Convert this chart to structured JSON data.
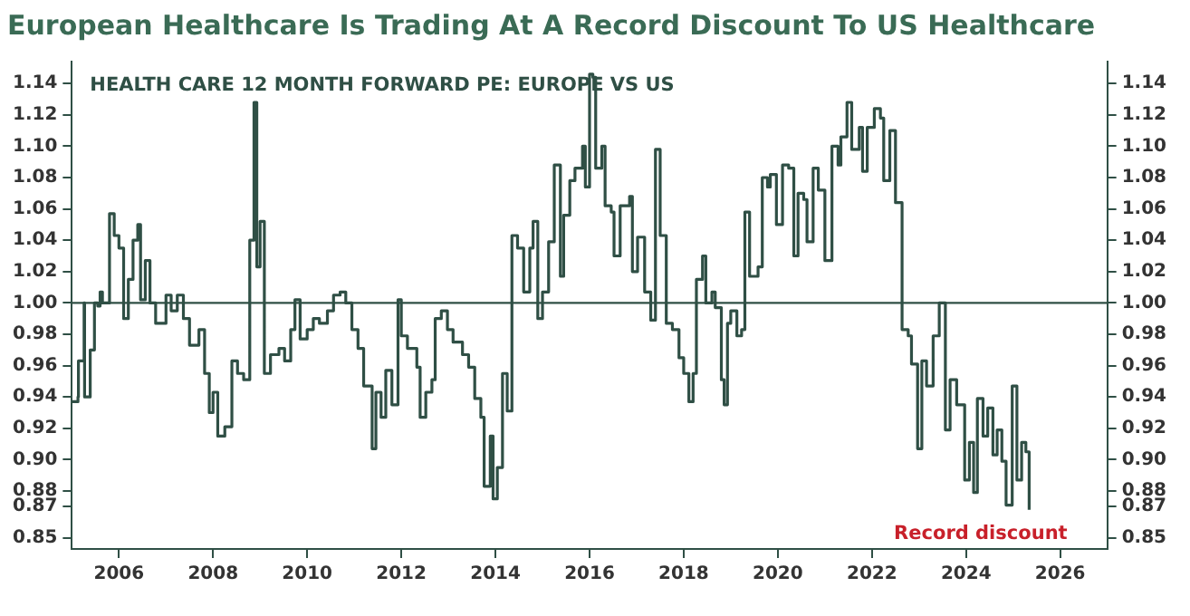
{
  "chart_data": {
    "type": "step",
    "title": "European Healthcare Is Trading At A Record Discount To US Healthcare",
    "subtitle": "HEALTH CARE 12 MONTH FORWARD PE: EUROPE VS US",
    "x": [
      2005.0,
      2005.13,
      2005.14,
      2005.26,
      2005.27,
      2005.39,
      2005.48,
      2005.55,
      2005.6,
      2005.65,
      2005.8,
      2005.9,
      2006.0,
      2006.1,
      2006.2,
      2006.3,
      2006.4,
      2006.46,
      2006.56,
      2006.66,
      2006.78,
      2007.0,
      2007.11,
      2007.24,
      2007.37,
      2007.5,
      2007.7,
      2007.82,
      2007.92,
      2008.0,
      2008.1,
      2008.25,
      2008.4,
      2008.52,
      2008.65,
      2008.78,
      2008.87,
      2008.93,
      2009.0,
      2009.09,
      2009.22,
      2009.4,
      2009.52,
      2009.65,
      2009.74,
      2009.85,
      2010.0,
      2010.13,
      2010.26,
      2010.43,
      2010.56,
      2010.7,
      2010.82,
      2010.95,
      2011.08,
      2011.2,
      2011.38,
      2011.46,
      2011.57,
      2011.67,
      2011.8,
      2011.93,
      2012.0,
      2012.13,
      2012.33,
      2012.4,
      2012.52,
      2012.65,
      2012.72,
      2012.85,
      2012.98,
      2013.1,
      2013.3,
      2013.43,
      2013.56,
      2013.69,
      2013.76,
      2013.89,
      2013.95,
      2014.04,
      2014.15,
      2014.25,
      2014.35,
      2014.47,
      2014.6,
      2014.73,
      2014.8,
      2014.9,
      2015.0,
      2015.13,
      2015.25,
      2015.38,
      2015.45,
      2015.58,
      2015.69,
      2015.85,
      2015.91,
      2016.0,
      2016.07,
      2016.13,
      2016.26,
      2016.33,
      2016.46,
      2016.52,
      2016.65,
      2016.85,
      2016.91,
      2017.02,
      2017.17,
      2017.3,
      2017.4,
      2017.5,
      2017.63,
      2017.76,
      2017.9,
      2018.0,
      2018.11,
      2018.2,
      2018.27,
      2018.4,
      2018.47,
      2018.6,
      2018.67,
      2018.8,
      2018.86,
      2018.93,
      2019.0,
      2019.13,
      2019.23,
      2019.3,
      2019.4,
      2019.58,
      2019.67,
      2019.78,
      2019.84,
      2019.97,
      2020.1,
      2020.23,
      2020.34,
      2020.43,
      2020.55,
      2020.62,
      2020.75,
      2020.86,
      2021.0,
      2021.15,
      2021.28,
      2021.34,
      2021.47,
      2021.57,
      2021.73,
      2021.8,
      2021.9,
      2022.05,
      2022.18,
      2022.25,
      2022.38,
      2022.5,
      2022.64,
      2022.77,
      2022.84,
      2022.97,
      2023.06,
      2023.16,
      2023.3,
      2023.43,
      2023.56,
      2023.66,
      2023.8,
      2023.97,
      2024.07,
      2024.16,
      2024.24,
      2024.36,
      2024.46,
      2024.57,
      2024.66,
      2024.76,
      2024.85,
      2024.98,
      2025.08,
      2025.18,
      2025.27,
      2025.34
    ],
    "values": [
      0.937,
      0.94,
      0.963,
      1.0,
      0.94,
      0.97,
      1.0,
      0.998,
      1.007,
      1.0,
      1.057,
      1.043,
      1.035,
      0.99,
      1.015,
      1.04,
      1.05,
      1.002,
      1.027,
      1.0,
      0.987,
      1.005,
      0.995,
      1.005,
      0.99,
      0.973,
      0.983,
      0.955,
      0.93,
      0.943,
      0.915,
      0.921,
      0.963,
      0.955,
      0.951,
      1.04,
      1.128,
      1.023,
      1.052,
      0.955,
      0.967,
      0.971,
      0.963,
      0.983,
      1.002,
      0.977,
      0.983,
      0.99,
      0.987,
      0.995,
      1.005,
      1.007,
      1.0,
      0.983,
      0.971,
      0.947,
      0.907,
      0.943,
      0.927,
      0.957,
      0.935,
      1.002,
      0.979,
      0.971,
      0.959,
      0.927,
      0.943,
      0.951,
      0.99,
      0.995,
      0.983,
      0.975,
      0.967,
      0.959,
      0.939,
      0.927,
      0.883,
      0.915,
      0.875,
      0.895,
      0.955,
      0.931,
      1.043,
      1.035,
      1.007,
      1.035,
      1.052,
      0.99,
      1.007,
      1.039,
      1.088,
      1.017,
      1.056,
      1.078,
      1.086,
      1.1,
      1.074,
      1.146,
      1.144,
      1.086,
      1.1,
      1.062,
      1.058,
      1.03,
      1.062,
      1.068,
      1.02,
      1.042,
      1.007,
      0.989,
      1.098,
      1.043,
      0.987,
      0.983,
      0.965,
      0.955,
      0.937,
      0.955,
      1.015,
      1.03,
      1.0,
      1.007,
      0.997,
      0.951,
      0.935,
      0.987,
      0.995,
      0.979,
      0.983,
      1.058,
      1.017,
      1.023,
      1.08,
      1.074,
      1.082,
      1.05,
      1.088,
      1.086,
      1.03,
      1.07,
      1.066,
      1.039,
      1.086,
      1.072,
      1.027,
      1.1,
      1.088,
      1.106,
      1.128,
      1.098,
      1.112,
      1.084,
      1.112,
      1.124,
      1.118,
      1.078,
      1.11,
      1.064,
      0.983,
      0.979,
      0.961,
      0.907,
      0.963,
      0.947,
      0.979,
      1.0,
      0.919,
      0.951,
      0.935,
      0.887,
      0.911,
      0.879,
      0.939,
      0.915,
      0.933,
      0.903,
      0.919,
      0.899,
      0.871,
      0.947,
      0.887,
      0.911,
      0.905,
      0.868
    ],
    "color": "#2f4f45",
    "xlim": [
      2005,
      2027
    ],
    "xticks": [
      2006,
      2008,
      2010,
      2012,
      2014,
      2016,
      2018,
      2020,
      2022,
      2024,
      2026
    ],
    "ylim": [
      0.843,
      1.154
    ],
    "yticks": [
      {
        "value": 0.85,
        "label": "0.85"
      },
      {
        "value": 0.87,
        "label": "0.87"
      },
      {
        "value": 0.88,
        "label": "0.88"
      },
      {
        "value": 0.9,
        "label": "0.90"
      },
      {
        "value": 0.92,
        "label": "0.92"
      },
      {
        "value": 0.94,
        "label": "0.94"
      },
      {
        "value": 0.96,
        "label": "0.96"
      },
      {
        "value": 0.98,
        "label": "0.98"
      },
      {
        "value": 1.0,
        "label": "1.00"
      },
      {
        "value": 1.02,
        "label": "1.02"
      },
      {
        "value": 1.04,
        "label": "1.04"
      },
      {
        "value": 1.06,
        "label": "1.06"
      },
      {
        "value": 1.08,
        "label": "1.08"
      },
      {
        "value": 1.1,
        "label": "1.10"
      },
      {
        "value": 1.12,
        "label": "1.12"
      },
      {
        "value": 1.14,
        "label": "1.14"
      }
    ],
    "y2lim": [
      0.843,
      1.154
    ],
    "y2ticks": [
      {
        "value": 0.85,
        "label": "0.85"
      },
      {
        "value": 0.87,
        "label": "0.87"
      },
      {
        "value": 0.88,
        "label": "0.88"
      },
      {
        "value": 0.9,
        "label": "0.90"
      },
      {
        "value": 0.92,
        "label": "0.92"
      },
      {
        "value": 0.94,
        "label": "0.94"
      },
      {
        "value": 0.96,
        "label": "0.96"
      },
      {
        "value": 0.98,
        "label": "0.98"
      },
      {
        "value": 1.0,
        "label": "1.00"
      },
      {
        "value": 1.02,
        "label": "1.02"
      },
      {
        "value": 1.04,
        "label": "1.04"
      },
      {
        "value": 1.06,
        "label": "1.06"
      },
      {
        "value": 1.08,
        "label": "1.08"
      },
      {
        "value": 1.1,
        "label": "1.10"
      },
      {
        "value": 1.12,
        "label": "1.12"
      },
      {
        "value": 1.14,
        "label": "1.14"
      }
    ],
    "ref_lines": [
      {
        "axis": "y",
        "value": 1.0,
        "color": "#2f4f45"
      }
    ],
    "annotations": [
      "Record discount"
    ],
    "grid": false,
    "legend": false
  }
}
